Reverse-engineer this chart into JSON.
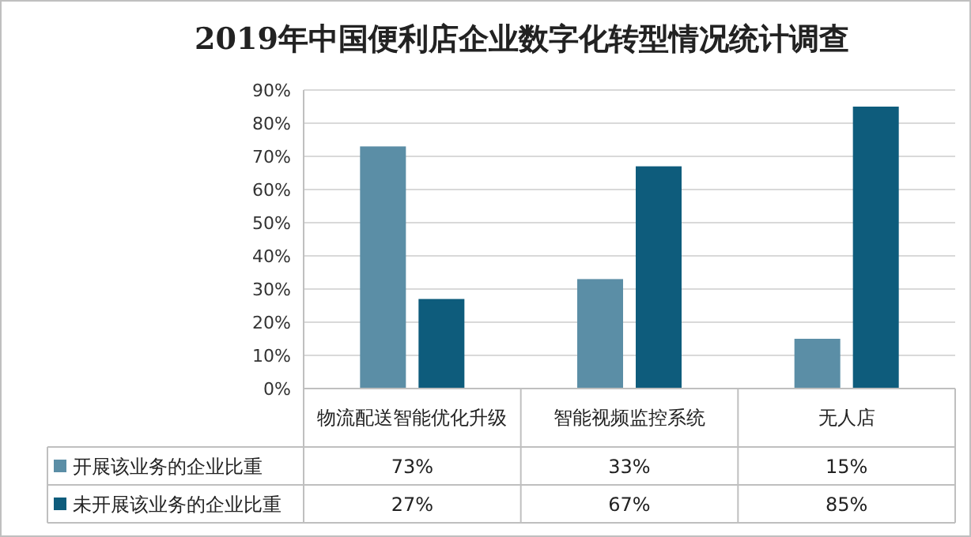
{
  "chart_data": {
    "type": "bar",
    "title": "2019年中国便利店企业数字化转型情况统计调查",
    "categories": [
      "物流配送智能优化升级",
      "智能视频监控系统",
      "无人店"
    ],
    "series": [
      {
        "name": "开展该业务的企业比重",
        "color": "#5b8ea6",
        "values": [
          73,
          33,
          15
        ],
        "value_labels": [
          "73%",
          "33%",
          "15%"
        ]
      },
      {
        "name": "未开展该业务的企业比重",
        "color": "#0e5c7c",
        "values": [
          27,
          67,
          85
        ],
        "value_labels": [
          "27%",
          "67%",
          "85%"
        ]
      }
    ],
    "ylim": [
      0,
      90
    ],
    "yticks": [
      {
        "value": 0,
        "label": "0%"
      },
      {
        "value": 10,
        "label": "10%"
      },
      {
        "value": 20,
        "label": "20%"
      },
      {
        "value": 30,
        "label": "30%"
      },
      {
        "value": 40,
        "label": "40%"
      },
      {
        "value": 50,
        "label": "50%"
      },
      {
        "value": 60,
        "label": "60%"
      },
      {
        "value": 70,
        "label": "70%"
      },
      {
        "value": 80,
        "label": "80%"
      },
      {
        "value": 90,
        "label": "90%"
      }
    ],
    "grid": "y",
    "legend": "bottom"
  }
}
